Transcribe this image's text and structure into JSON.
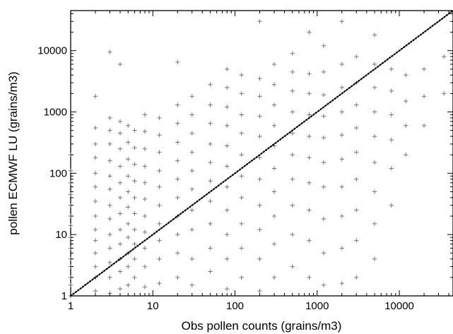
{
  "chart_data": {
    "type": "scatter",
    "xlabel": "Obs pollen counts (grains/m3)",
    "ylabel": "pollen ECMWF LU (grains/m3)",
    "xscale": "log",
    "yscale": "log",
    "xlim": [
      1,
      45000
    ],
    "ylim": [
      1,
      45000
    ],
    "x_ticks": [
      {
        "value": 1,
        "label": "1"
      },
      {
        "value": 10,
        "label": "10"
      },
      {
        "value": 100,
        "label": "100"
      },
      {
        "value": 1000,
        "label": "1000"
      },
      {
        "value": 10000,
        "label": "10000"
      }
    ],
    "y_ticks": [
      {
        "value": 1,
        "label": "1"
      },
      {
        "value": 10,
        "label": "10"
      },
      {
        "value": 100,
        "label": "100"
      },
      {
        "value": 1000,
        "label": "1000"
      },
      {
        "value": 10000,
        "label": "10000"
      }
    ],
    "grid": false,
    "marker": "+",
    "marker_color": "#777777",
    "reference_line": {
      "style": "dotted",
      "from": [
        1,
        1
      ],
      "to": [
        45000,
        45000
      ],
      "color": "#000000"
    },
    "points": [
      [
        1,
        1
      ],
      [
        1,
        1.5
      ],
      [
        1,
        2
      ],
      [
        1,
        3
      ],
      [
        1,
        4
      ],
      [
        1,
        6
      ],
      [
        1,
        9
      ],
      [
        1,
        14
      ],
      [
        1,
        20
      ],
      [
        1,
        30
      ],
      [
        1,
        45
      ],
      [
        1,
        70
      ],
      [
        1,
        110
      ],
      [
        1,
        200
      ],
      [
        2,
        1.2
      ],
      [
        2,
        2
      ],
      [
        2,
        3
      ],
      [
        2,
        5
      ],
      [
        2,
        8
      ],
      [
        2,
        12
      ],
      [
        2,
        20
      ],
      [
        2,
        35
      ],
      [
        2,
        60
      ],
      [
        2,
        100
      ],
      [
        2,
        180
      ],
      [
        2,
        300
      ],
      [
        2,
        550
      ],
      [
        2,
        1800
      ],
      [
        3,
        1.1
      ],
      [
        3,
        2
      ],
      [
        3,
        3.5
      ],
      [
        3,
        6
      ],
      [
        3,
        10
      ],
      [
        3,
        18
      ],
      [
        3,
        30
      ],
      [
        3,
        55
      ],
      [
        3,
        90
      ],
      [
        3,
        160
      ],
      [
        3,
        300
      ],
      [
        3,
        500
      ],
      [
        3,
        800
      ],
      [
        3,
        9500
      ],
      [
        4,
        1.3
      ],
      [
        4,
        2.5
      ],
      [
        4,
        4
      ],
      [
        4,
        7
      ],
      [
        4,
        12
      ],
      [
        4,
        22
      ],
      [
        4,
        40
      ],
      [
        4,
        70
      ],
      [
        4,
        130
      ],
      [
        4,
        250
      ],
      [
        4,
        450
      ],
      [
        4,
        700
      ],
      [
        4,
        6000
      ],
      [
        5,
        1.5
      ],
      [
        5,
        3
      ],
      [
        5,
        5
      ],
      [
        5,
        9
      ],
      [
        5,
        15
      ],
      [
        5,
        28
      ],
      [
        5,
        50
      ],
      [
        5,
        90
      ],
      [
        5,
        170
      ],
      [
        5,
        320
      ],
      [
        5,
        600
      ],
      [
        6,
        2
      ],
      [
        6,
        4
      ],
      [
        6,
        7
      ],
      [
        6,
        12
      ],
      [
        6,
        22
      ],
      [
        6,
        40
      ],
      [
        6,
        75
      ],
      [
        6,
        140
      ],
      [
        6,
        260
      ],
      [
        6,
        500
      ],
      [
        8,
        1.4
      ],
      [
        8,
        3
      ],
      [
        8,
        6
      ],
      [
        8,
        11
      ],
      [
        8,
        20
      ],
      [
        8,
        38
      ],
      [
        8,
        70
      ],
      [
        8,
        130
      ],
      [
        8,
        250
      ],
      [
        8,
        480
      ],
      [
        8,
        900
      ],
      [
        12,
        1.6
      ],
      [
        12,
        4
      ],
      [
        12,
        8
      ],
      [
        12,
        15
      ],
      [
        12,
        30
      ],
      [
        12,
        60
      ],
      [
        12,
        110
      ],
      [
        12,
        220
      ],
      [
        12,
        420
      ],
      [
        12,
        800
      ],
      [
        20,
        2
      ],
      [
        20,
        5
      ],
      [
        20,
        10
      ],
      [
        20,
        20
      ],
      [
        20,
        40
      ],
      [
        20,
        80
      ],
      [
        20,
        160
      ],
      [
        20,
        320
      ],
      [
        20,
        650
      ],
      [
        20,
        1300
      ],
      [
        20,
        6500
      ],
      [
        30,
        1.5
      ],
      [
        30,
        4
      ],
      [
        30,
        12
      ],
      [
        30,
        25
      ],
      [
        30,
        55
      ],
      [
        30,
        110
      ],
      [
        30,
        220
      ],
      [
        30,
        450
      ],
      [
        30,
        900
      ],
      [
        30,
        1800
      ],
      [
        50,
        2.5
      ],
      [
        50,
        6
      ],
      [
        50,
        15
      ],
      [
        50,
        35
      ],
      [
        50,
        75
      ],
      [
        50,
        150
      ],
      [
        50,
        300
      ],
      [
        50,
        650
      ],
      [
        50,
        1300
      ],
      [
        50,
        2800
      ],
      [
        80,
        1.3
      ],
      [
        80,
        4
      ],
      [
        80,
        10
      ],
      [
        80,
        25
      ],
      [
        80,
        60
      ],
      [
        80,
        130
      ],
      [
        80,
        280
      ],
      [
        80,
        600
      ],
      [
        80,
        1200
      ],
      [
        80,
        2500
      ],
      [
        80,
        5000
      ],
      [
        120,
        2
      ],
      [
        120,
        6
      ],
      [
        120,
        15
      ],
      [
        120,
        40
      ],
      [
        120,
        90
      ],
      [
        120,
        200
      ],
      [
        120,
        450
      ],
      [
        120,
        900
      ],
      [
        120,
        2000
      ],
      [
        120,
        4000
      ],
      [
        200,
        1.2
      ],
      [
        200,
        4
      ],
      [
        200,
        12
      ],
      [
        200,
        30
      ],
      [
        200,
        80
      ],
      [
        200,
        180
      ],
      [
        200,
        400
      ],
      [
        200,
        850
      ],
      [
        200,
        1800
      ],
      [
        200,
        3500
      ],
      [
        200,
        30000
      ],
      [
        300,
        2
      ],
      [
        300,
        7
      ],
      [
        300,
        20
      ],
      [
        300,
        50
      ],
      [
        300,
        120
      ],
      [
        300,
        280
      ],
      [
        300,
        600
      ],
      [
        300,
        1300
      ],
      [
        300,
        2800
      ],
      [
        300,
        6000
      ],
      [
        500,
        3
      ],
      [
        500,
        10
      ],
      [
        500,
        30
      ],
      [
        500,
        80
      ],
      [
        500,
        200
      ],
      [
        500,
        450
      ],
      [
        500,
        1000
      ],
      [
        500,
        2200
      ],
      [
        500,
        4500
      ],
      [
        500,
        9000
      ],
      [
        800,
        2
      ],
      [
        800,
        8
      ],
      [
        800,
        25
      ],
      [
        800,
        70
      ],
      [
        800,
        180
      ],
      [
        800,
        400
      ],
      [
        800,
        900
      ],
      [
        800,
        2000
      ],
      [
        800,
        4200
      ],
      [
        800,
        20000
      ],
      [
        1200,
        1.5
      ],
      [
        1200,
        5
      ],
      [
        1200,
        18
      ],
      [
        1200,
        60
      ],
      [
        1200,
        150
      ],
      [
        1200,
        380
      ],
      [
        1200,
        850
      ],
      [
        1200,
        1900
      ],
      [
        1200,
        4500
      ],
      [
        1200,
        12000
      ],
      [
        2000,
        1.6
      ],
      [
        2000,
        6
      ],
      [
        2000,
        20
      ],
      [
        2000,
        60
      ],
      [
        2000,
        170
      ],
      [
        2000,
        420
      ],
      [
        2000,
        1000
      ],
      [
        2000,
        2500
      ],
      [
        2000,
        6000
      ],
      [
        2000,
        30000
      ],
      [
        3000,
        2
      ],
      [
        3000,
        8
      ],
      [
        3000,
        25
      ],
      [
        3000,
        80
      ],
      [
        3000,
        220
      ],
      [
        3000,
        550
      ],
      [
        3000,
        1300
      ],
      [
        3000,
        3000
      ],
      [
        3000,
        8000
      ],
      [
        5000,
        4
      ],
      [
        5000,
        15
      ],
      [
        5000,
        50
      ],
      [
        5000,
        150
      ],
      [
        5000,
        400
      ],
      [
        5000,
        1000
      ],
      [
        5000,
        2500
      ],
      [
        5000,
        6000
      ],
      [
        5000,
        18000
      ],
      [
        8000,
        30
      ],
      [
        8000,
        120
      ],
      [
        8000,
        350
      ],
      [
        8000,
        900
      ],
      [
        8000,
        2200
      ],
      [
        8000,
        5000
      ],
      [
        12000,
        200
      ],
      [
        12000,
        600
      ],
      [
        12000,
        1500
      ],
      [
        12000,
        4000
      ],
      [
        20000,
        600
      ],
      [
        20000,
        1800
      ],
      [
        20000,
        5000
      ],
      [
        35000,
        2000
      ],
      [
        35000,
        8000
      ]
    ]
  }
}
